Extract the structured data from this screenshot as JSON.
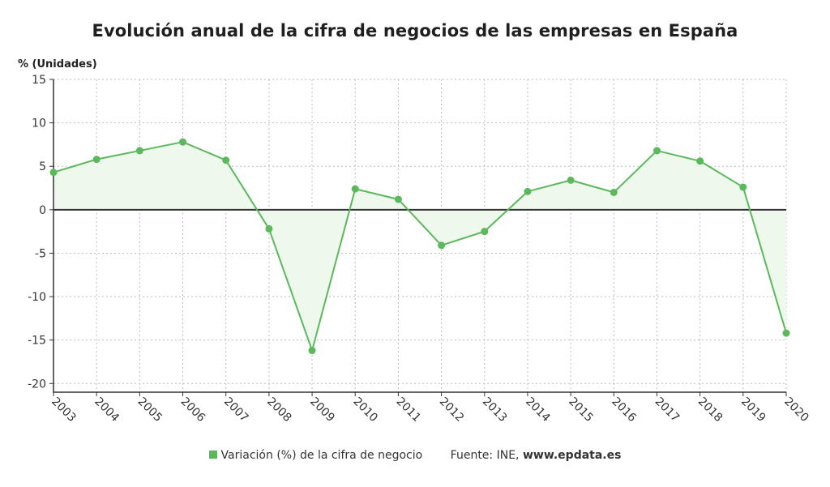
{
  "title": "Evolución anual de la cifra de negocios de las empresas en España",
  "colors": {
    "series": "#5cb85c",
    "fill": "#eef8ec",
    "zero_line": "#333333",
    "grid": "#bdbdbd"
  },
  "legend": {
    "series_label": "Variación (%) de la cifra de negocio",
    "source_label": "Fuente: INE,",
    "source_domain": "www.epdata.es"
  },
  "chart_data": {
    "type": "line",
    "title": "Evolución anual de la cifra de negocios de las empresas en España",
    "ylabel": "% (Unidades)",
    "xlabel": "",
    "ylim": [
      -21,
      15
    ],
    "yticks": [
      15,
      10,
      5,
      0,
      -5,
      -10,
      -15,
      -20
    ],
    "grid": true,
    "legend_position": "bottom",
    "categories": [
      "2003",
      "2004",
      "2005",
      "2006",
      "2007",
      "2008",
      "2009",
      "2010",
      "2011",
      "2012",
      "2013",
      "2014",
      "2015",
      "2016",
      "2017",
      "2018",
      "2019",
      "2020"
    ],
    "series": [
      {
        "name": "Variación (%) de la cifra de negocio",
        "values": [
          4.3,
          5.8,
          6.8,
          7.8,
          5.7,
          -2.2,
          -16.2,
          2.4,
          1.2,
          -4.1,
          -2.5,
          2.1,
          3.4,
          2.0,
          6.8,
          5.6,
          2.6,
          -14.2
        ]
      }
    ]
  }
}
